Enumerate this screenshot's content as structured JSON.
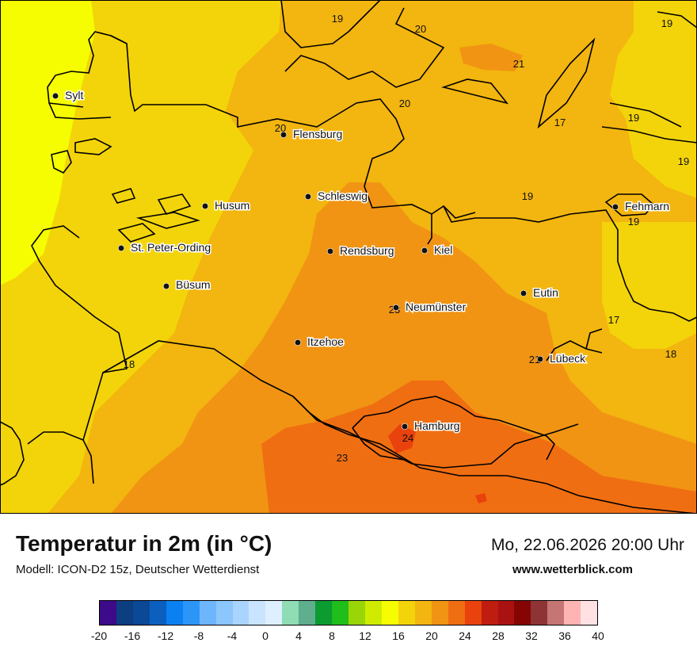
{
  "title": "Temperatur in 2m (in °C)",
  "model": "Modell: ICON-D2 15z, Deutscher Wetterdienst",
  "datetime": "Mo, 22.06.2026 20:00 Uhr",
  "website": "www.wetterblick.com",
  "colors": {
    "yellow_bright": "#f5fd00",
    "yellow": "#f3d40a",
    "amber": "#f3b50f",
    "orange": "#f19413",
    "orange_dark": "#f06e12",
    "red_orange": "#e9420d",
    "coastline": "#000000"
  },
  "colorbar": {
    "colors": [
      "#3d0a8a",
      "#0d3f80",
      "#0b4895",
      "#0b5fbe",
      "#0a80f1",
      "#2c96f8",
      "#6eb6fb",
      "#8bc6fc",
      "#a9d4fe",
      "#c8e4fe",
      "#deefff",
      "#8fdcb5",
      "#5fae8d",
      "#0b9b31",
      "#1fbe1b",
      "#9ad507",
      "#cfec00",
      "#f5fd00",
      "#f3d40a",
      "#f3b50f",
      "#f19413",
      "#f06e12",
      "#e9420d",
      "#bf1d10",
      "#aa1111",
      "#850505",
      "#8f3434",
      "#c57573",
      "#fdb4b2",
      "#ffe1e4"
    ],
    "ticks": [
      "-20",
      "-16",
      "-12",
      "-8",
      "-4",
      "0",
      "4",
      "8",
      "12",
      "16",
      "20",
      "24",
      "28",
      "32",
      "36",
      "40"
    ]
  },
  "cities": [
    {
      "name": "Sylt",
      "icon": "city-dot-icon"
    },
    {
      "name": "Flensburg",
      "icon": "city-dot-icon"
    },
    {
      "name": "Schleswig",
      "icon": "city-dot-icon"
    },
    {
      "name": "Husum",
      "icon": "city-dot-icon"
    },
    {
      "name": "St. Peter-Ording",
      "icon": "city-dot-icon"
    },
    {
      "name": "Rendsburg",
      "icon": "city-dot-icon"
    },
    {
      "name": "Kiel",
      "icon": "city-dot-icon"
    },
    {
      "name": "Büsum",
      "icon": "city-dot-icon"
    },
    {
      "name": "Neumünster",
      "icon": "city-dot-icon"
    },
    {
      "name": "Itzehoe",
      "icon": "city-dot-icon"
    },
    {
      "name": "Eutin",
      "icon": "city-dot-icon"
    },
    {
      "name": "Fehmarn",
      "icon": "city-dot-icon"
    },
    {
      "name": "Lübeck",
      "icon": "city-dot-icon"
    },
    {
      "name": "Hamburg",
      "icon": "city-dot-icon"
    }
  ],
  "isotherm_labels": [
    "19",
    "20",
    "21",
    "20",
    "20",
    "17",
    "19",
    "19",
    "19",
    "19",
    "23",
    "17",
    "18",
    "18",
    "21",
    "24",
    "23"
  ]
}
